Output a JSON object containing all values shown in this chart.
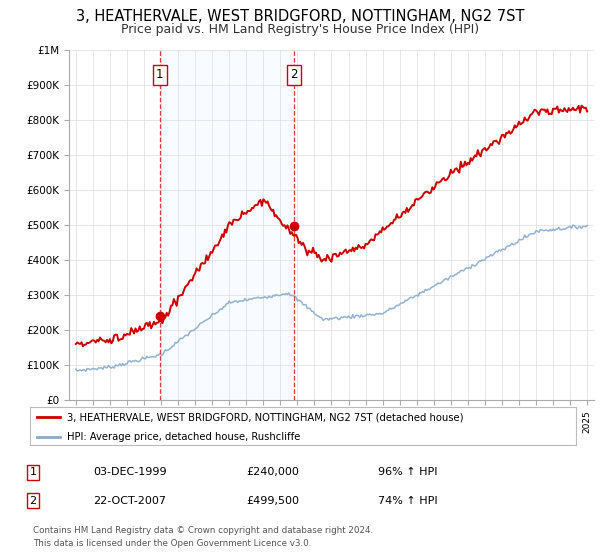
{
  "title": "3, HEATHERVALE, WEST BRIDGFORD, NOTTINGHAM, NG2 7ST",
  "subtitle": "Price paid vs. HM Land Registry's House Price Index (HPI)",
  "ylim": [
    0,
    1000000
  ],
  "yticks": [
    0,
    100000,
    200000,
    300000,
    400000,
    500000,
    600000,
    700000,
    800000,
    900000,
    1000000
  ],
  "ytick_labels": [
    "£0",
    "£100K",
    "£200K",
    "£300K",
    "£400K",
    "£500K",
    "£600K",
    "£700K",
    "£800K",
    "£900K",
    "£1M"
  ],
  "xlim_start": 1994.6,
  "xlim_end": 2025.4,
  "red_line_color": "#cc0000",
  "blue_line_color": "#88aacc",
  "fill_color": "#ddeeff",
  "grid_color": "#dddddd",
  "background_color": "#ffffff",
  "title_fontsize": 10.5,
  "subtitle_fontsize": 9,
  "sale1_date": 1999.92,
  "sale1_price": 240000,
  "sale1_label": "1",
  "sale2_date": 2007.81,
  "sale2_price": 499500,
  "sale2_label": "2",
  "vline1_x": 1999.92,
  "vline2_x": 2007.81,
  "legend_entry1": "3, HEATHERVALE, WEST BRIDGFORD, NOTTINGHAM, NG2 7ST (detached house)",
  "legend_entry2": "HPI: Average price, detached house, Rushcliffe",
  "table_row1": [
    "1",
    "03-DEC-1999",
    "£240,000",
    "96% ↑ HPI"
  ],
  "table_row2": [
    "2",
    "22-OCT-2007",
    "£499,500",
    "74% ↑ HPI"
  ],
  "footnote1": "Contains HM Land Registry data © Crown copyright and database right 2024.",
  "footnote2": "This data is licensed under the Open Government Licence v3.0."
}
